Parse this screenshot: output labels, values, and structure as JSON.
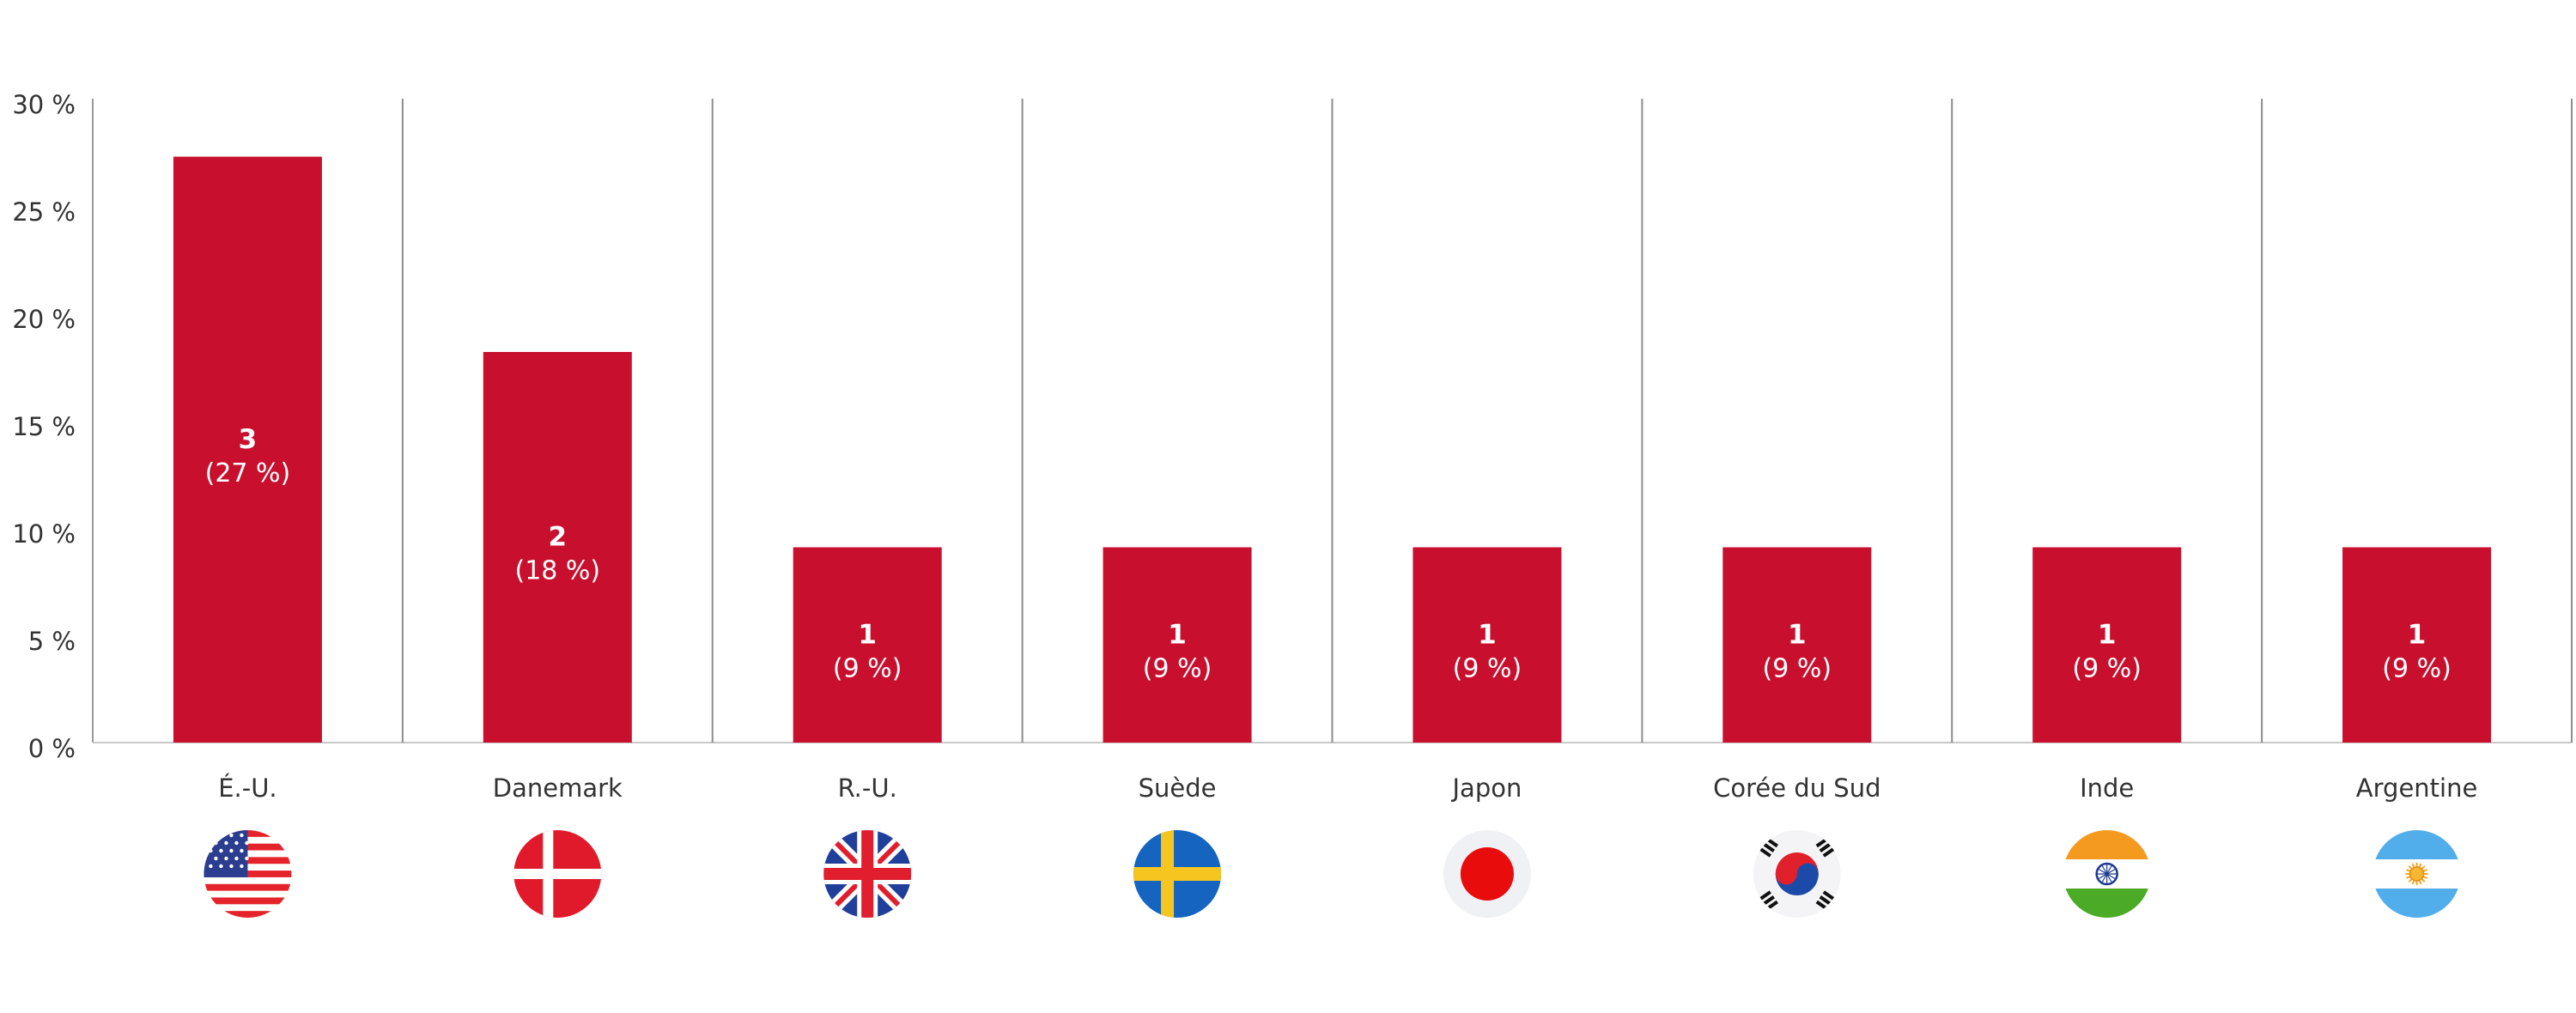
{
  "chart_data": {
    "type": "bar",
    "categories": [
      "É.-U.",
      "Danemark",
      "R.-U.",
      "Suède",
      "Japon",
      "Corée du Sud",
      "Inde",
      "Argentine"
    ],
    "values": [
      27.3,
      18.2,
      9.1,
      9.1,
      9.1,
      9.1,
      9.1,
      9.1
    ],
    "counts": [
      "3",
      "2",
      "1",
      "1",
      "1",
      "1",
      "1",
      "1"
    ],
    "data_labels": [
      "(27 %)",
      "(18 %)",
      "(9 %)",
      "(9 %)",
      "(9 %)",
      "(9 %)",
      "(9 %)",
      "(9 %)"
    ],
    "flags": [
      "flag-usa-icon",
      "flag-denmark-icon",
      "flag-uk-icon",
      "flag-sweden-icon",
      "flag-japan-icon",
      "flag-south-korea-icon",
      "flag-india-icon",
      "flag-argentina-icon"
    ],
    "ylim": [
      0,
      30
    ],
    "yticks": [
      0,
      5,
      10,
      15,
      20,
      25,
      30
    ],
    "ytick_labels": [
      "0 %",
      "5 %",
      "10 %",
      "15 %",
      "20 %",
      "25 %",
      "30 %"
    ],
    "bar_color": "#c8102e",
    "grid": false,
    "title": "",
    "xlabel": "",
    "ylabel": ""
  }
}
